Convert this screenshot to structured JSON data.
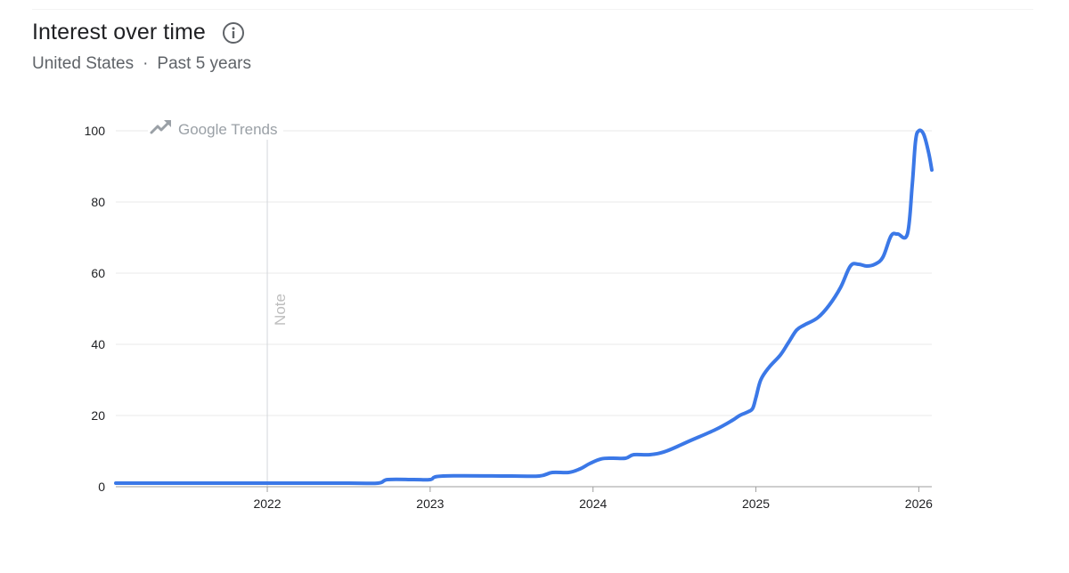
{
  "header": {
    "title": "Interest over time",
    "info_icon": "info-icon",
    "region": "United States",
    "separator": "·",
    "period": "Past 5 years"
  },
  "watermark": {
    "icon": "trending-up-icon",
    "label": "Google Trends"
  },
  "annotation": {
    "label": "Note",
    "x": 2022.0
  },
  "colors": {
    "line": "#3b78e7",
    "grid": "#e8e8e8",
    "axis": "#9e9e9e",
    "note_line": "#dadce0",
    "tick_text": "#202124"
  },
  "chart_data": {
    "type": "line",
    "title": "Interest over time",
    "subtitle": "United States · Past 5 years",
    "xlabel": "",
    "ylabel": "",
    "xlim": [
      2021.07,
      2026.08
    ],
    "ylim": [
      0,
      100
    ],
    "yticks": [
      0,
      20,
      40,
      60,
      80,
      100
    ],
    "xticks": [
      {
        "value": 2022,
        "label": "2022"
      },
      {
        "value": 2023,
        "label": "2023"
      },
      {
        "value": 2024,
        "label": "2024"
      },
      {
        "value": 2025,
        "label": "2025"
      },
      {
        "value": 2026,
        "label": "2026"
      }
    ],
    "grid": true,
    "legend": "none",
    "series": [
      {
        "values": [
          [
            2021.07,
            1
          ],
          [
            2021.5,
            1
          ],
          [
            2022.0,
            1
          ],
          [
            2022.5,
            1
          ],
          [
            2022.68,
            1
          ],
          [
            2022.74,
            2
          ],
          [
            2022.9,
            2
          ],
          [
            2023.0,
            2
          ],
          [
            2023.08,
            3
          ],
          [
            2023.5,
            3
          ],
          [
            2023.67,
            3
          ],
          [
            2023.75,
            4
          ],
          [
            2023.85,
            4
          ],
          [
            2023.92,
            5
          ],
          [
            2023.98,
            6.5
          ],
          [
            2024.05,
            7.8
          ],
          [
            2024.12,
            8
          ],
          [
            2024.2,
            8
          ],
          [
            2024.25,
            9
          ],
          [
            2024.35,
            9
          ],
          [
            2024.45,
            10
          ],
          [
            2024.6,
            13
          ],
          [
            2024.75,
            16
          ],
          [
            2024.85,
            18.5
          ],
          [
            2024.9,
            20
          ],
          [
            2024.95,
            21
          ],
          [
            2024.98,
            22
          ],
          [
            2025.0,
            25
          ],
          [
            2025.03,
            30
          ],
          [
            2025.08,
            33.5
          ],
          [
            2025.15,
            37
          ],
          [
            2025.2,
            40.5
          ],
          [
            2025.25,
            44
          ],
          [
            2025.3,
            45.5
          ],
          [
            2025.38,
            47.5
          ],
          [
            2025.45,
            51
          ],
          [
            2025.52,
            56
          ],
          [
            2025.58,
            62
          ],
          [
            2025.63,
            62.5
          ],
          [
            2025.68,
            62
          ],
          [
            2025.73,
            62.5
          ],
          [
            2025.78,
            64.5
          ],
          [
            2025.83,
            70.5
          ],
          [
            2025.87,
            71
          ],
          [
            2025.93,
            71
          ],
          [
            2025.96,
            85
          ],
          [
            2025.98,
            97
          ],
          [
            2026.0,
            100
          ],
          [
            2026.03,
            99
          ],
          [
            2026.06,
            94
          ],
          [
            2026.08,
            89
          ]
        ]
      }
    ]
  }
}
